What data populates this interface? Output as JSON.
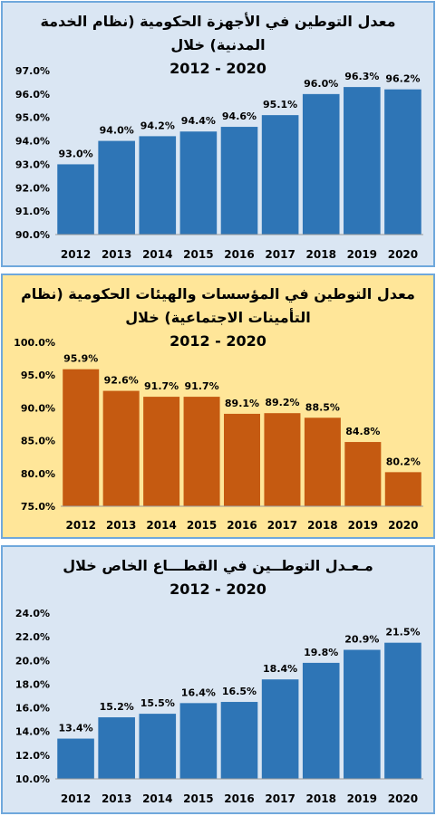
{
  "chart_data": [
    {
      "type": "bar",
      "title_rtl": "معدل التوطين في الأجهزة الحكومية (نظام الخدمة المدنية) خلال",
      "title_years": "2012 - 2020",
      "categories": [
        "2012",
        "2013",
        "2014",
        "2015",
        "2016",
        "2017",
        "2018",
        "2019",
        "2020"
      ],
      "values": [
        93.0,
        94.0,
        94.2,
        94.4,
        94.6,
        95.1,
        96.0,
        96.3,
        96.2
      ],
      "value_labels": [
        "93.0%",
        "94.0%",
        "94.2%",
        "94.4%",
        "94.6%",
        "95.1%",
        "96.0%",
        "96.3%",
        "96.2%"
      ],
      "ylim": [
        90,
        97
      ],
      "yticks": [
        90,
        91,
        92,
        93,
        94,
        95,
        96,
        97
      ],
      "ytick_labels": [
        "90.0%",
        "91.0%",
        "92.0%",
        "93.0%",
        "94.0%",
        "95.0%",
        "96.0%",
        "97.0%"
      ],
      "bar_color": "#2E75B6",
      "background": "#DAE6F3",
      "grid": false
    },
    {
      "type": "bar",
      "title_rtl": "معدل التوطين في المؤسسات والهيئات الحكومية (نظام التأمينات الاجتماعية) خلال",
      "title_years": "2012 - 2020",
      "categories": [
        "2012",
        "2013",
        "2014",
        "2015",
        "2016",
        "2017",
        "2018",
        "2019",
        "2020"
      ],
      "values": [
        95.9,
        92.6,
        91.7,
        91.7,
        89.1,
        89.2,
        88.5,
        84.8,
        80.2
      ],
      "value_labels": [
        "95.9%",
        "92.6%",
        "91.7%",
        "91.7%",
        "89.1%",
        "89.2%",
        "88.5%",
        "84.8%",
        "80.2%"
      ],
      "ylim": [
        75,
        100
      ],
      "yticks": [
        75,
        80,
        85,
        90,
        95,
        100
      ],
      "ytick_labels": [
        "75.0%",
        "80.0%",
        "85.0%",
        "90.0%",
        "95.0%",
        "100.0%"
      ],
      "bar_color": "#C55A11",
      "background": "#FFE699",
      "grid": false
    },
    {
      "type": "bar",
      "title_rtl": "مـعـدل التوطــين في القطـــاع الخاص خلال",
      "title_years": "2012 - 2020",
      "categories": [
        "2012",
        "2013",
        "2014",
        "2015",
        "2016",
        "2017",
        "2018",
        "2019",
        "2020"
      ],
      "values": [
        13.4,
        15.2,
        15.5,
        16.4,
        16.5,
        18.4,
        19.8,
        20.9,
        21.5
      ],
      "value_labels": [
        "13.4%",
        "15.2%",
        "15.5%",
        "16.4%",
        "16.5%",
        "18.4%",
        "19.8%",
        "20.9%",
        "21.5%"
      ],
      "ylim": [
        10,
        24
      ],
      "yticks": [
        10,
        12,
        14,
        16,
        18,
        20,
        22,
        24
      ],
      "ytick_labels": [
        "10.0%",
        "12.0%",
        "14.0%",
        "16.0%",
        "18.0%",
        "20.0%",
        "22.0%",
        "24.0%"
      ],
      "bar_color": "#2E75B6",
      "background": "#DAE6F3",
      "grid": false
    }
  ],
  "colors": {
    "border": "#6FA8DC"
  }
}
